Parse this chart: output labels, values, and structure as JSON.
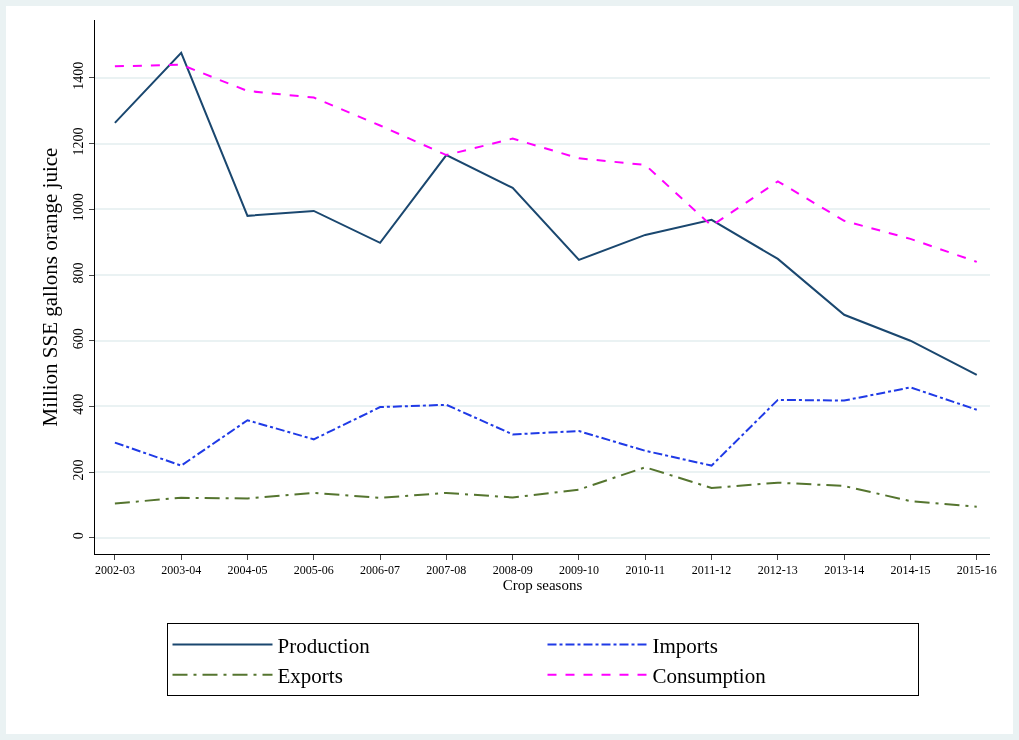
{
  "chart_data": {
    "type": "line",
    "xlabel": "Crop seasons",
    "ylabel": "Million SSE gallons orange juice",
    "categories": [
      "2002-03",
      "2003-04",
      "2004-05",
      "2005-06",
      "2006-07",
      "2007-08",
      "2008-09",
      "2009-10",
      "2010-11",
      "2011-12",
      "2012-13",
      "2013-14",
      "2014-15",
      "2015-16"
    ],
    "series": [
      {
        "name": "Production",
        "color": "#1a476f",
        "line_style": "solid",
        "values": [
          1263,
          1476,
          980,
          995,
          898,
          1165,
          1065,
          846,
          922,
          968,
          849,
          679,
          600,
          496
        ]
      },
      {
        "name": "Imports",
        "color": "#1f3ae6",
        "line_style": "dashdot",
        "values": [
          290,
          220,
          358,
          300,
          398,
          405,
          315,
          325,
          265,
          220,
          420,
          418,
          458,
          390
        ]
      },
      {
        "name": "Exports",
        "color": "#55752f",
        "line_style": "longdashdot",
        "values": [
          105,
          122,
          120,
          137,
          122,
          137,
          123,
          147,
          215,
          152,
          168,
          158,
          112,
          95
        ]
      },
      {
        "name": "Consumption",
        "color": "#ff00ff",
        "line_style": "dashed",
        "values": [
          1435,
          1440,
          1360,
          1340,
          1255,
          1165,
          1215,
          1155,
          1135,
          950,
          1085,
          965,
          910,
          840
        ]
      }
    ],
    "ylim": [
      -49,
      1576
    ],
    "yticks": [
      0,
      200,
      400,
      600,
      800,
      1000,
      1200,
      1400
    ],
    "grid": "y",
    "legend": "bottom",
    "marker": "none"
  }
}
